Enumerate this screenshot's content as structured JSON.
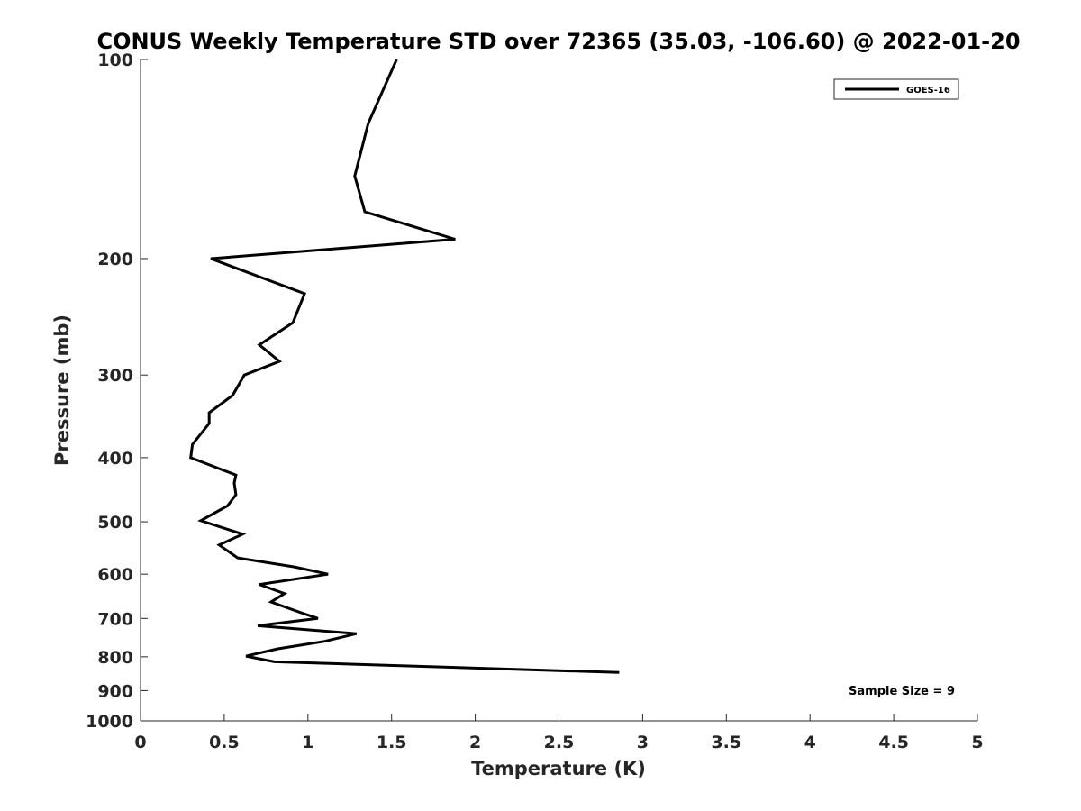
{
  "chart_data": {
    "type": "line",
    "title": "CONUS Weekly Temperature STD over 72365 (35.03, -106.60) @ 2022-01-20",
    "xlabel": "Temperature (K)",
    "ylabel": "Pressure (mb)",
    "xlim": [
      0,
      5
    ],
    "ylim": [
      100,
      1000
    ],
    "yscale": "log",
    "y_reversed": true,
    "xticks": [
      "0",
      "0.5",
      "1",
      "1.5",
      "2",
      "2.5",
      "3",
      "3.5",
      "4",
      "4.5",
      "5"
    ],
    "yticks": [
      "100",
      "200",
      "300",
      "400",
      "500",
      "600",
      "700",
      "800",
      "900",
      "1000"
    ],
    "grid": false,
    "legend_position": "top-right",
    "annotation": "Sample Size = 9",
    "line_color": "#000000",
    "series": [
      {
        "name": "GOES-16",
        "points": [
          {
            "x": 1.53,
            "y": 100
          },
          {
            "x": 1.36,
            "y": 125
          },
          {
            "x": 1.28,
            "y": 150
          },
          {
            "x": 1.34,
            "y": 170
          },
          {
            "x": 1.88,
            "y": 187
          },
          {
            "x": 0.42,
            "y": 200
          },
          {
            "x": 0.98,
            "y": 226
          },
          {
            "x": 0.91,
            "y": 250
          },
          {
            "x": 0.71,
            "y": 270
          },
          {
            "x": 0.83,
            "y": 286
          },
          {
            "x": 0.62,
            "y": 300
          },
          {
            "x": 0.55,
            "y": 322
          },
          {
            "x": 0.41,
            "y": 342
          },
          {
            "x": 0.41,
            "y": 355
          },
          {
            "x": 0.31,
            "y": 382
          },
          {
            "x": 0.3,
            "y": 400
          },
          {
            "x": 0.57,
            "y": 425
          },
          {
            "x": 0.56,
            "y": 437
          },
          {
            "x": 0.57,
            "y": 455
          },
          {
            "x": 0.52,
            "y": 473
          },
          {
            "x": 0.36,
            "y": 498
          },
          {
            "x": 0.61,
            "y": 522
          },
          {
            "x": 0.47,
            "y": 542
          },
          {
            "x": 0.58,
            "y": 567
          },
          {
            "x": 0.92,
            "y": 585
          },
          {
            "x": 1.12,
            "y": 600
          },
          {
            "x": 0.71,
            "y": 622
          },
          {
            "x": 0.86,
            "y": 642
          },
          {
            "x": 0.78,
            "y": 661
          },
          {
            "x": 0.95,
            "y": 685
          },
          {
            "x": 1.06,
            "y": 700
          },
          {
            "x": 0.7,
            "y": 718
          },
          {
            "x": 1.29,
            "y": 738
          },
          {
            "x": 1.1,
            "y": 758
          },
          {
            "x": 0.82,
            "y": 778
          },
          {
            "x": 0.63,
            "y": 798
          },
          {
            "x": 0.8,
            "y": 814
          },
          {
            "x": 2.86,
            "y": 845
          }
        ]
      }
    ]
  }
}
